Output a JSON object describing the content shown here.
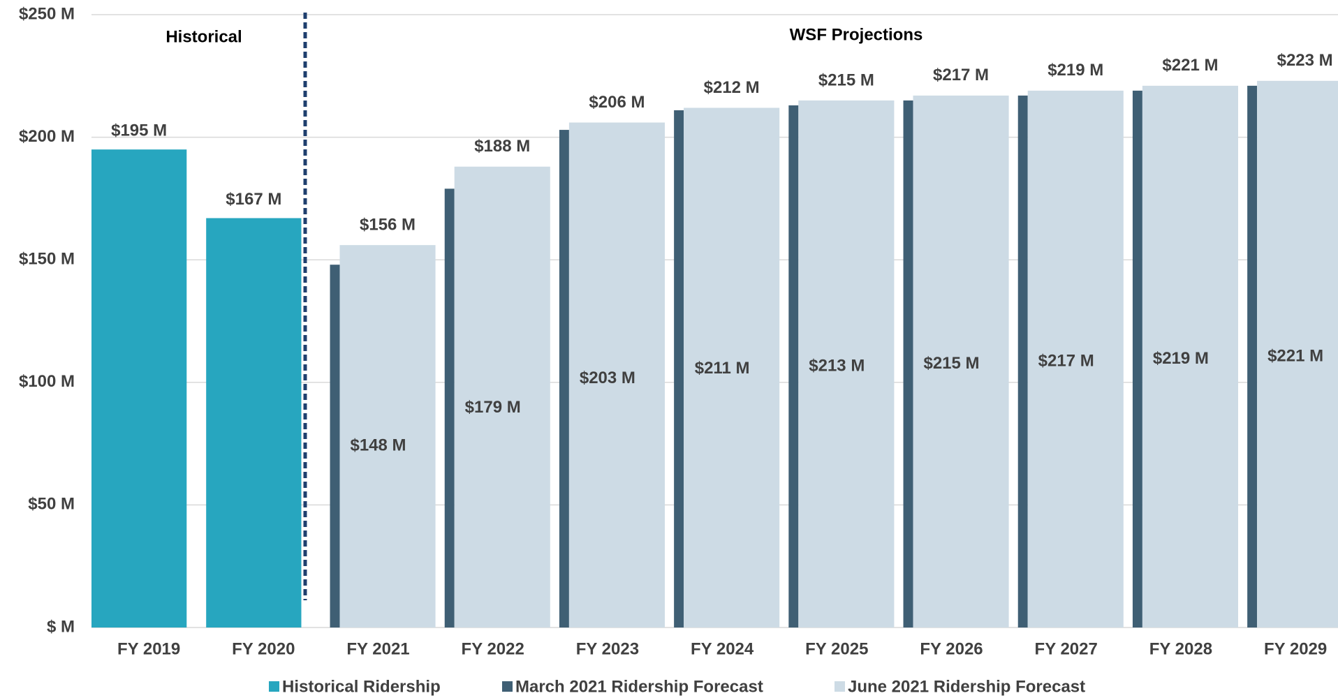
{
  "chart_data": {
    "type": "bar",
    "categories": [
      "FY 2019",
      "FY 2020",
      "FY 2021",
      "FY 2022",
      "FY 2023",
      "FY 2024",
      "FY 2025",
      "FY 2026",
      "FY 2027",
      "FY 2028",
      "FY 2029"
    ],
    "annotations": [
      "Historical",
      "WSF Projections"
    ],
    "series": [
      {
        "name": "Historical Ridership",
        "color": "#27a6bf",
        "values": [
          195,
          167,
          null,
          null,
          null,
          null,
          null,
          null,
          null,
          null,
          null
        ],
        "value_labels": [
          "$195 M",
          "$167 M",
          null,
          null,
          null,
          null,
          null,
          null,
          null,
          null,
          null
        ]
      },
      {
        "name": "March 2021 Ridership Forecast",
        "color": "#3f5f74",
        "values": [
          null,
          null,
          148,
          179,
          203,
          211,
          213,
          215,
          217,
          219,
          221
        ],
        "value_labels": [
          null,
          null,
          "$148 M",
          "$179 M",
          "$203 M",
          "$211 M",
          "$213 M",
          "$215 M",
          "$217 M",
          "$219 M",
          "$221 M"
        ]
      },
      {
        "name": "June 2021 Ridership Forecast",
        "color": "#cddbe5",
        "values": [
          null,
          null,
          156,
          188,
          206,
          212,
          215,
          217,
          219,
          221,
          223
        ],
        "value_labels": [
          null,
          null,
          "$156 M",
          "$188 M",
          "$206 M",
          "$212 M",
          "$215 M",
          "$217 M",
          "$219 M",
          "$221 M",
          "$223 M"
        ]
      }
    ],
    "ylim": [
      0,
      250
    ],
    "yticks": [
      {
        "value": 0,
        "label": "$ M"
      },
      {
        "value": 50,
        "label": "$50 M"
      },
      {
        "value": 100,
        "label": "$100 M"
      },
      {
        "value": 150,
        "label": "$150 M"
      },
      {
        "value": 200,
        "label": "$200 M"
      },
      {
        "value": 250,
        "label": "$250 M"
      }
    ],
    "grid": true
  }
}
